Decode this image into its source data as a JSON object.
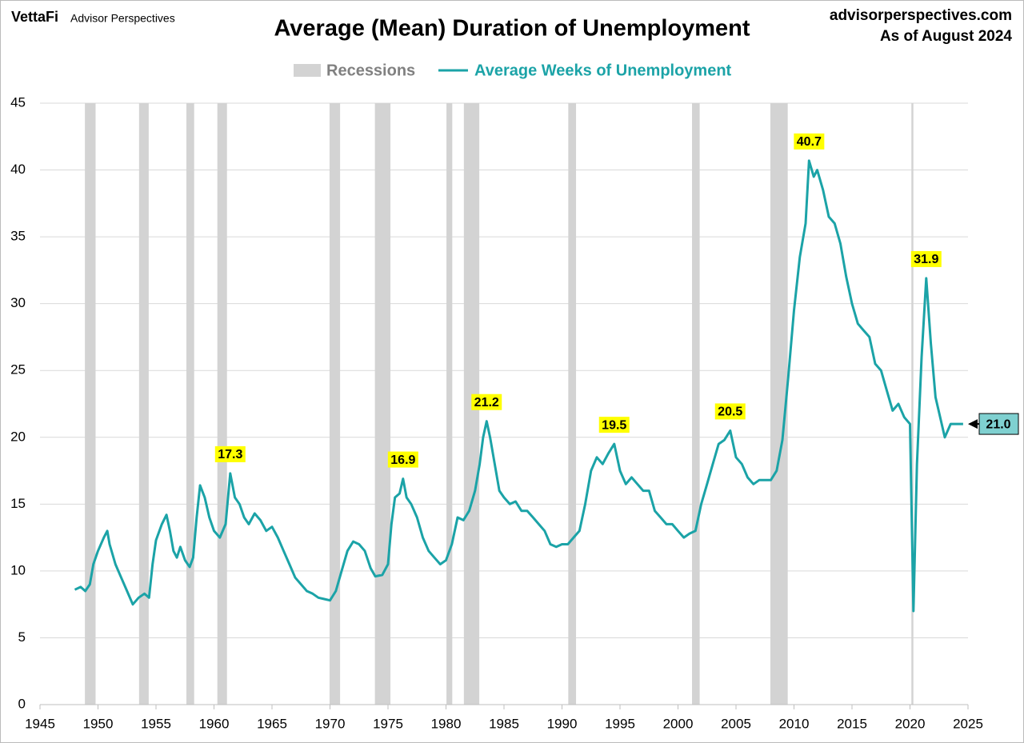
{
  "chart_data": {
    "type": "line",
    "brand": "VettaFi",
    "brand_sub": "Advisor Perspectives",
    "title": "Average (Mean) Duration of Unemployment",
    "source": "advisorperspectives.com",
    "date_note": "As of August 2024",
    "recession_label": "Recessions",
    "recession_color": "#d3d3d3",
    "recessions": [
      [
        1948.87,
        1949.79
      ],
      [
        1953.54,
        1954.37
      ],
      [
        1957.62,
        1958.29
      ],
      [
        1960.29,
        1961.12
      ],
      [
        1969.96,
        1970.87
      ],
      [
        1973.87,
        1975.21
      ],
      [
        1980.04,
        1980.54
      ],
      [
        1981.54,
        1982.87
      ],
      [
        1990.54,
        1991.21
      ],
      [
        2001.21,
        2001.87
      ],
      [
        2007.96,
        2009.46
      ],
      [
        2020.12,
        2020.29
      ]
    ],
    "x": [
      1948.0,
      1948.5,
      1948.9,
      1949.3,
      1949.6,
      1950.0,
      1950.5,
      1950.8,
      1951.0,
      1951.5,
      1952.0,
      1952.5,
      1953.0,
      1953.5,
      1954.0,
      1954.4,
      1954.7,
      1955.0,
      1955.5,
      1955.9,
      1956.2,
      1956.5,
      1956.8,
      1957.1,
      1957.5,
      1957.9,
      1958.2,
      1958.5,
      1958.8,
      1959.2,
      1959.6,
      1960.0,
      1960.5,
      1961.0,
      1961.4,
      1961.8,
      1962.2,
      1962.6,
      1963.0,
      1963.5,
      1964.0,
      1964.5,
      1965.0,
      1965.5,
      1966.0,
      1966.5,
      1967.0,
      1967.5,
      1968.0,
      1968.5,
      1969.0,
      1969.5,
      1970.0,
      1970.5,
      1971.0,
      1971.5,
      1972.0,
      1972.5,
      1973.0,
      1973.5,
      1973.9,
      1974.5,
      1975.0,
      1975.3,
      1975.6,
      1976.0,
      1976.3,
      1976.6,
      1977.0,
      1977.5,
      1978.0,
      1978.5,
      1979.0,
      1979.5,
      1980.0,
      1980.5,
      1981.0,
      1981.5,
      1982.0,
      1982.5,
      1982.9,
      1983.2,
      1983.5,
      1983.8,
      1984.2,
      1984.6,
      1985.0,
      1985.5,
      1986.0,
      1986.5,
      1987.0,
      1987.5,
      1988.0,
      1988.5,
      1989.0,
      1989.5,
      1990.0,
      1990.5,
      1991.0,
      1991.5,
      1992.0,
      1992.5,
      1993.0,
      1993.5,
      1994.0,
      1994.5,
      1995.0,
      1995.5,
      1996.0,
      1996.5,
      1997.0,
      1997.5,
      1998.0,
      1998.5,
      1999.0,
      1999.5,
      2000.0,
      2000.5,
      2001.0,
      2001.5,
      2002.0,
      2002.5,
      2003.0,
      2003.5,
      2004.0,
      2004.5,
      2005.0,
      2005.5,
      2006.0,
      2006.5,
      2007.0,
      2007.5,
      2008.0,
      2008.5,
      2009.0,
      2009.5,
      2010.0,
      2010.5,
      2011.0,
      2011.3,
      2011.7,
      2012.0,
      2012.5,
      2013.0,
      2013.5,
      2014.0,
      2014.5,
      2015.0,
      2015.5,
      2016.0,
      2016.5,
      2017.0,
      2017.5,
      2018.0,
      2018.5,
      2019.0,
      2019.5,
      2020.0,
      2020.3,
      2020.6,
      2021.0,
      2021.4,
      2021.8,
      2022.2,
      2022.6,
      2023.0,
      2023.5,
      2024.0,
      2024.58
    ],
    "series": [
      {
        "name": "Average Weeks of Unemployment",
        "color": "#1ba3a7",
        "values": [
          8.6,
          8.8,
          8.5,
          9.0,
          10.5,
          11.5,
          12.5,
          13.0,
          12.0,
          10.5,
          9.5,
          8.5,
          7.5,
          8.0,
          8.3,
          8.0,
          10.5,
          12.3,
          13.5,
          14.2,
          13.0,
          11.5,
          11.0,
          11.8,
          10.8,
          10.3,
          11.0,
          14.0,
          16.4,
          15.5,
          14.0,
          13.0,
          12.5,
          13.5,
          17.3,
          15.5,
          15.0,
          14.0,
          13.5,
          14.3,
          13.8,
          13.0,
          13.3,
          12.5,
          11.5,
          10.5,
          9.5,
          9.0,
          8.5,
          8.3,
          8.0,
          7.9,
          7.8,
          8.5,
          10.0,
          11.5,
          12.2,
          12.0,
          11.5,
          10.2,
          9.6,
          9.7,
          10.5,
          13.5,
          15.5,
          15.8,
          16.9,
          15.5,
          15.0,
          14.0,
          12.5,
          11.5,
          11.0,
          10.5,
          10.8,
          12.0,
          14.0,
          13.8,
          14.5,
          16.0,
          18.0,
          20.0,
          21.2,
          20.0,
          18.0,
          16.0,
          15.5,
          15.0,
          15.2,
          14.5,
          14.5,
          14.0,
          13.5,
          13.0,
          12.0,
          11.8,
          12.0,
          12.0,
          12.5,
          13.0,
          15.0,
          17.5,
          18.5,
          18.0,
          18.8,
          19.5,
          17.5,
          16.5,
          17.0,
          16.5,
          16.0,
          16.0,
          14.5,
          14.0,
          13.5,
          13.5,
          13.0,
          12.5,
          12.8,
          13.0,
          15.0,
          16.5,
          18.0,
          19.5,
          19.8,
          20.5,
          18.5,
          18.0,
          17.0,
          16.5,
          16.8,
          16.8,
          16.8,
          17.5,
          19.8,
          24.5,
          29.5,
          33.5,
          36.0,
          40.7,
          39.5,
          40.0,
          38.5,
          36.5,
          36.0,
          34.5,
          32.0,
          30.0,
          28.5,
          28.0,
          27.5,
          25.5,
          25.0,
          23.5,
          22.0,
          22.5,
          21.5,
          21.0,
          7.0,
          18.0,
          26.0,
          31.9,
          27.0,
          23.0,
          21.5,
          20.0,
          21.0,
          21.0,
          21.0
        ]
      }
    ],
    "annotations": {
      "x": [
        1961.4,
        1976.3,
        1983.5,
        1994.5,
        2004.5,
        2011.3,
        2021.4
      ],
      "values": [
        17.3,
        16.9,
        21.2,
        19.5,
        20.5,
        40.7,
        31.9
      ],
      "color": "#ffff00"
    },
    "callout": {
      "x": 2024.58,
      "values": [
        21
      ],
      "value_labels": [
        "21.0"
      ],
      "color": "#7fd0d0"
    },
    "xlim": [
      1945,
      2025
    ],
    "xticks": [
      1945,
      1950,
      1955,
      1960,
      1965,
      1970,
      1975,
      1980,
      1985,
      1990,
      1995,
      2000,
      2005,
      2010,
      2015,
      2020,
      2025
    ],
    "ylim": [
      0,
      45
    ],
    "yticks": [
      0,
      5,
      10,
      15,
      20,
      25,
      30,
      35,
      40,
      45
    ],
    "grid": true
  }
}
